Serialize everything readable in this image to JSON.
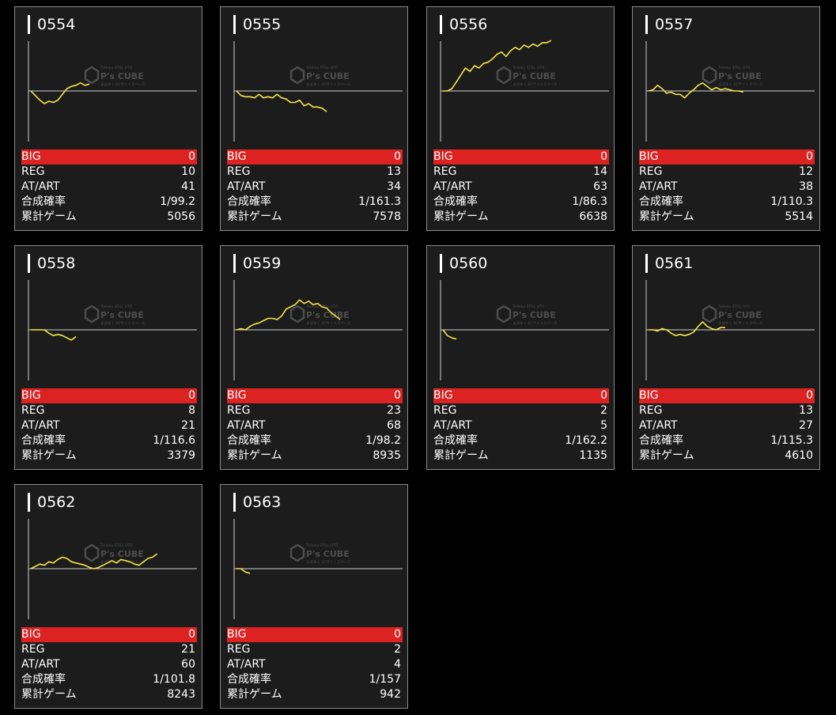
{
  "labels": {
    "big": "BIG",
    "reg": "REG",
    "at": "AT/ART",
    "rate": "合成確率",
    "games": "累計ゲーム"
  },
  "watermark": {
    "top": "ToHoku STILL HTR",
    "main": "P's CUBE",
    "bottom": "まばゆく ECサイトスペース"
  },
  "colors": {
    "line": "#f2e64a",
    "big_bar": "#dd2222",
    "card_bg": "#1c1c1c",
    "card_border": "#8a8a8a"
  },
  "machines": [
    {
      "id": "0554",
      "big": "0",
      "reg": "10",
      "at": "41",
      "rate": "1/99.2",
      "games": "5056",
      "series": [
        0,
        -4,
        -8,
        -11,
        -9,
        -10,
        -8,
        -3,
        2,
        4,
        5,
        7,
        5,
        6
      ]
    },
    {
      "id": "0555",
      "big": "0",
      "reg": "13",
      "at": "34",
      "rate": "1/161.3",
      "games": "7578",
      "series": [
        0,
        -4,
        -5,
        -5,
        -6,
        -3,
        -6,
        -5,
        -6,
        -3,
        -6,
        -7,
        -10,
        -10,
        -8,
        -13,
        -11,
        -14,
        -14,
        -15,
        -18
      ]
    },
    {
      "id": "0556",
      "big": "0",
      "reg": "14",
      "at": "63",
      "rate": "1/86.3",
      "games": "6638",
      "series": [
        0,
        0,
        2,
        8,
        14,
        20,
        17,
        22,
        20,
        24,
        25,
        28,
        32,
        34,
        30,
        35,
        38,
        36,
        40,
        38,
        41,
        39,
        42,
        42,
        44
      ]
    },
    {
      "id": "0557",
      "big": "0",
      "reg": "12",
      "at": "38",
      "rate": "1/110.3",
      "games": "5514",
      "series": [
        0,
        1,
        5,
        2,
        -2,
        -1,
        -3,
        -3,
        -6,
        -2,
        1,
        5,
        7,
        4,
        1,
        3,
        1,
        2,
        1,
        0,
        0,
        -1
      ]
    },
    {
      "id": "0558",
      "big": "0",
      "reg": "8",
      "at": "21",
      "rate": "1/116.6",
      "games": "3379",
      "series": [
        0,
        0,
        0,
        0,
        -3,
        -5,
        -4,
        -5,
        -7,
        -9,
        -6
      ]
    },
    {
      "id": "0559",
      "big": "0",
      "reg": "23",
      "at": "68",
      "rate": "1/98.2",
      "games": "8935",
      "series": [
        0,
        1,
        0,
        3,
        5,
        6,
        8,
        10,
        10,
        9,
        12,
        18,
        20,
        22,
        26,
        23,
        25,
        22,
        23,
        20,
        19,
        15,
        12,
        9
      ]
    },
    {
      "id": "0560",
      "big": "0",
      "reg": "2",
      "at": "5",
      "rate": "1/162.2",
      "games": "1135",
      "series": [
        0,
        -5,
        -7,
        -8
      ]
    },
    {
      "id": "0561",
      "big": "0",
      "reg": "13",
      "at": "27",
      "rate": "1/115.3",
      "games": "4610",
      "series": [
        0,
        0,
        -1,
        1,
        0,
        -3,
        -5,
        -4,
        -5,
        -4,
        -2,
        3,
        7,
        3,
        1,
        0,
        2,
        2
      ]
    },
    {
      "id": "0562",
      "big": "0",
      "reg": "21",
      "at": "60",
      "rate": "1/101.8",
      "games": "8243",
      "series": [
        0,
        2,
        4,
        3,
        6,
        5,
        8,
        10,
        9,
        6,
        5,
        4,
        3,
        1,
        0,
        1,
        3,
        5,
        7,
        5,
        8,
        7,
        6,
        4,
        3,
        6,
        9,
        10,
        13
      ]
    },
    {
      "id": "0563",
      "big": "0",
      "reg": "2",
      "at": "4",
      "rate": "1/157",
      "games": "942",
      "series": [
        0,
        0,
        -3,
        -4
      ]
    }
  ]
}
